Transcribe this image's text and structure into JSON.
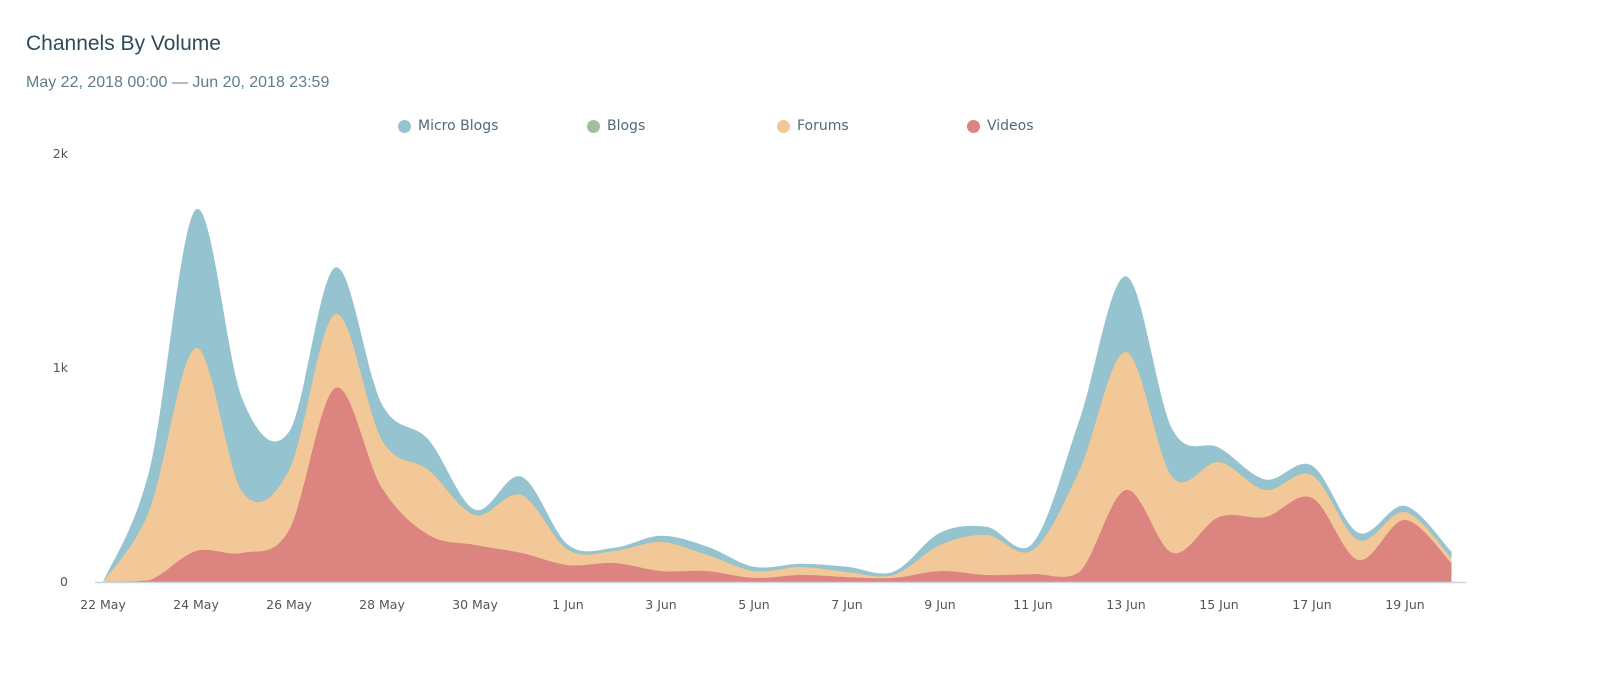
{
  "header": {
    "title": "Channels By Volume",
    "date_range": "May 22, 2018 00:00 — Jun 20, 2018 23:59"
  },
  "chart_data": {
    "type": "area",
    "stacked": true,
    "title": "Channels By Volume",
    "xlabel": "",
    "ylabel": "",
    "ylim": [
      0,
      2000
    ],
    "yticks": [
      {
        "value": 0,
        "label": "0"
      },
      {
        "value": 1000,
        "label": "1k"
      },
      {
        "value": 2000,
        "label": "2k"
      }
    ],
    "x": [
      "22 May",
      "23 May",
      "24 May",
      "25 May",
      "26 May",
      "27 May",
      "28 May",
      "29 May",
      "30 May",
      "31 May",
      "1 Jun",
      "2 Jun",
      "3 Jun",
      "4 Jun",
      "5 Jun",
      "6 Jun",
      "7 Jun",
      "8 Jun",
      "9 Jun",
      "10 Jun",
      "11 Jun",
      "12 Jun",
      "13 Jun",
      "14 Jun",
      "15 Jun",
      "16 Jun",
      "17 Jun",
      "18 Jun",
      "19 Jun",
      "20 Jun"
    ],
    "xticks": [
      "22 May",
      "24 May",
      "26 May",
      "28 May",
      "30 May",
      "1 Jun",
      "3 Jun",
      "5 Jun",
      "7 Jun",
      "9 Jun",
      "11 Jun",
      "13 Jun",
      "15 Jun",
      "17 Jun",
      "19 Jun"
    ],
    "legend_position": "top-center",
    "grid": false,
    "series": [
      {
        "name": "Micro Blogs",
        "color": "#96c3d0",
        "values": [
          0,
          187,
          645,
          430,
          177,
          215,
          164,
          140,
          23,
          84,
          23,
          14,
          28,
          38,
          19,
          14,
          23,
          14,
          56,
          37,
          32,
          234,
          350,
          220,
          65,
          47,
          42,
          33,
          28,
          28
        ]
      },
      {
        "name": "Blogs",
        "color": "#a0bf9e",
        "values": [
          0,
          2,
          3,
          3,
          2,
          3,
          3,
          2,
          2,
          2,
          1,
          1,
          1,
          1,
          1,
          1,
          1,
          1,
          1,
          1,
          1,
          2,
          3,
          2,
          2,
          2,
          2,
          1,
          1,
          1
        ]
      },
      {
        "name": "Forums",
        "color": "#f3c899",
        "values": [
          0,
          327,
          948,
          284,
          280,
          345,
          224,
          303,
          140,
          270,
          71,
          56,
          136,
          75,
          32,
          37,
          24,
          14,
          122,
          187,
          113,
          476,
          645,
          354,
          257,
          126,
          107,
          93,
          37,
          23
        ]
      },
      {
        "name": "Videos",
        "color": "#dc8580",
        "values": [
          0,
          9,
          145,
          136,
          243,
          907,
          439,
          220,
          173,
          136,
          79,
          89,
          51,
          51,
          19,
          33,
          23,
          19,
          51,
          33,
          37,
          47,
          430,
          136,
          304,
          304,
          393,
          103,
          290,
          89
        ]
      }
    ]
  }
}
